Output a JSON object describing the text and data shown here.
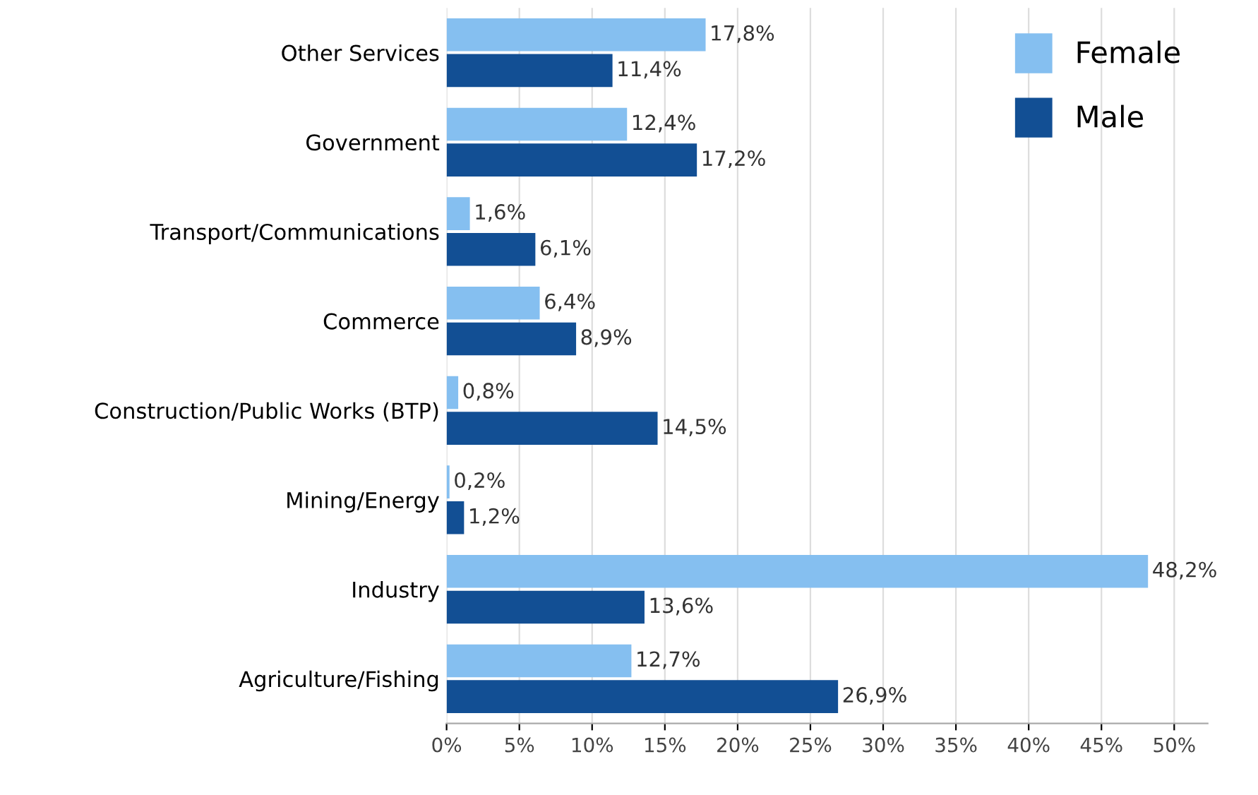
{
  "chart_data": {
    "type": "bar",
    "orientation": "horizontal",
    "categories": [
      "Other Services",
      "Government",
      "Transport/Communications",
      "Commerce",
      "Construction/Public Works (BTP)",
      "Mining/Energy",
      "Industry",
      "Agriculture/Fishing"
    ],
    "series": [
      {
        "name": "Female",
        "color": "#85bff0",
        "values": [
          17.8,
          12.4,
          1.6,
          6.4,
          0.8,
          0.2,
          48.2,
          12.7
        ],
        "value_labels": [
          "17,8%",
          "12,4%",
          "1,6%",
          "6,4%",
          "0,8%",
          "0,2%",
          "48,2%",
          "12,7%"
        ]
      },
      {
        "name": "Male",
        "color": "#124f94",
        "values": [
          11.4,
          17.2,
          6.1,
          8.9,
          14.5,
          1.2,
          13.6,
          26.9
        ],
        "value_labels": [
          "11,4%",
          "17,2%",
          "6,1%",
          "8,9%",
          "14,5%",
          "1,2%",
          "13,6%",
          "26,9%"
        ]
      }
    ],
    "xlim": [
      0,
      52.3
    ],
    "xticks": [
      {
        "value": 0,
        "label": "0%"
      },
      {
        "value": 5,
        "label": "5%"
      },
      {
        "value": 10,
        "label": "10%"
      },
      {
        "value": 15,
        "label": "15%"
      },
      {
        "value": 20,
        "label": "20%"
      },
      {
        "value": 25,
        "label": "25%"
      },
      {
        "value": 30,
        "label": "30%"
      },
      {
        "value": 35,
        "label": "35%"
      },
      {
        "value": 40,
        "label": "40%"
      },
      {
        "value": 45,
        "label": "45%"
      },
      {
        "value": 50,
        "label": "50%"
      }
    ],
    "grid": "x",
    "legend": "top right"
  }
}
